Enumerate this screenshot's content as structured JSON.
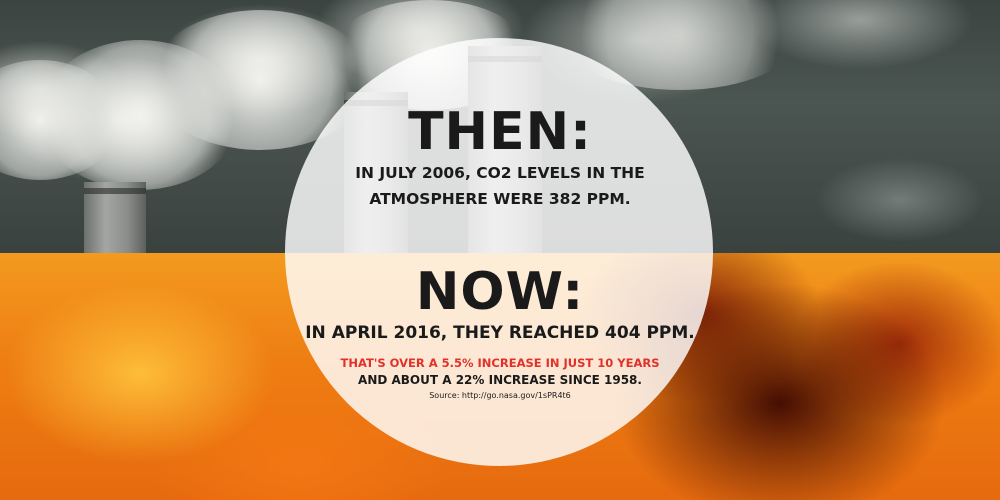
{
  "then": {
    "heading": "THEN:",
    "line_1": "IN JULY 2006, CO2 LEVELS IN THE",
    "line_2": "ATMOSPHERE WERE 382 PPM."
  },
  "now": {
    "heading": "NOW:",
    "line": "IN APRIL 2016, THEY REACHED 404 PPM.",
    "increase": "THAT'S OVER A 5.5% INCREASE IN JUST 10 YEARS",
    "since": "AND ABOUT A 22% INCREASE SINCE 1958.",
    "source": "Source: http://go.nasa.gov/1sPR4t6"
  },
  "colors": {
    "text": "#1a1a1a",
    "highlight": "#e0322a",
    "circle": "#ffffff",
    "sky_top": "#3b4441",
    "sky_bottom": "#ee7d12"
  }
}
